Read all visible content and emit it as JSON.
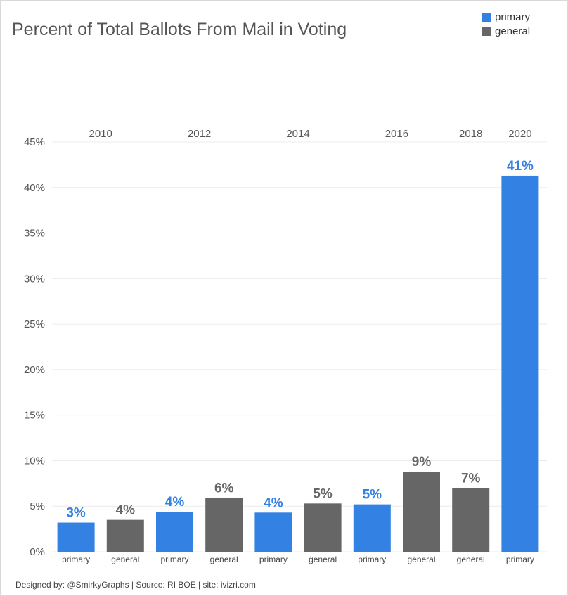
{
  "title": "Percent of Total Ballots From Mail in Voting",
  "legend": [
    {
      "label": "primary",
      "color": "#3381e2"
    },
    {
      "label": "general",
      "color": "#666666"
    }
  ],
  "footer": "Designed by: @SmirkyGraphs  |  Source: RI BOE  |  site: ivizri.com",
  "chart_data": {
    "type": "bar",
    "ylim": [
      0,
      45
    ],
    "yticks": [
      0,
      5,
      10,
      15,
      20,
      25,
      30,
      35,
      40,
      45
    ],
    "ytick_labels": [
      "0%",
      "5%",
      "10%",
      "15%",
      "20%",
      "25%",
      "30%",
      "35%",
      "40%",
      "45%"
    ],
    "grid": true,
    "legend_position": "top-right",
    "years": [
      "2010",
      "2012",
      "2014",
      "2016",
      "2018",
      "2020"
    ],
    "bars": [
      {
        "year": "2010",
        "type": "primary",
        "value": 3.2,
        "label": "3%"
      },
      {
        "year": "2010",
        "type": "general",
        "value": 3.5,
        "label": "4%"
      },
      {
        "year": "2012",
        "type": "primary",
        "value": 4.4,
        "label": "4%"
      },
      {
        "year": "2012",
        "type": "general",
        "value": 5.9,
        "label": "6%"
      },
      {
        "year": "2014",
        "type": "primary",
        "value": 4.3,
        "label": "4%"
      },
      {
        "year": "2014",
        "type": "general",
        "value": 5.3,
        "label": "5%"
      },
      {
        "year": "2016",
        "type": "primary",
        "value": 5.2,
        "label": "5%"
      },
      {
        "year": "2016",
        "type": "general",
        "value": 8.8,
        "label": "9%"
      },
      {
        "year": "2018",
        "type": "general",
        "value": 7.0,
        "label": "7%"
      },
      {
        "year": "2020",
        "type": "primary",
        "value": 41.3,
        "label": "41%"
      }
    ]
  }
}
